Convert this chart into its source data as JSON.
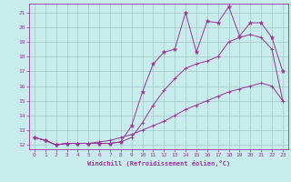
{
  "xlabel": "Windchill (Refroidissement éolien,°C)",
  "background_color": "#c8ecec",
  "grid_color": "#a0c8c8",
  "line_color": "#993399",
  "x_ticks": [
    0,
    1,
    2,
    3,
    4,
    5,
    6,
    7,
    8,
    9,
    10,
    11,
    12,
    13,
    14,
    15,
    16,
    17,
    18,
    19,
    20,
    21,
    22,
    23
  ],
  "y_ticks": [
    12,
    13,
    14,
    15,
    16,
    17,
    18,
    19,
    20,
    21
  ],
  "ylim": [
    11.7,
    21.6
  ],
  "xlim": [
    -0.5,
    23.5
  ],
  "line1_x": [
    0,
    1,
    2,
    3,
    4,
    5,
    6,
    7,
    8,
    9,
    10,
    11,
    12,
    13,
    14,
    15,
    16,
    17,
    18,
    19,
    20,
    21,
    22,
    23
  ],
  "line1_y": [
    12.5,
    12.3,
    12.0,
    12.1,
    12.1,
    12.1,
    12.1,
    12.1,
    12.2,
    13.3,
    15.6,
    17.5,
    18.3,
    18.5,
    21.0,
    18.3,
    20.4,
    20.3,
    21.4,
    19.4,
    20.3,
    20.3,
    19.3,
    17.0
  ],
  "line2_x": [
    0,
    1,
    2,
    3,
    4,
    5,
    6,
    7,
    8,
    9,
    10,
    11,
    12,
    13,
    14,
    15,
    16,
    17,
    18,
    19,
    20,
    21,
    22,
    23
  ],
  "line2_y": [
    12.5,
    12.3,
    12.0,
    12.1,
    12.1,
    12.1,
    12.1,
    12.1,
    12.2,
    12.5,
    13.5,
    14.7,
    15.7,
    16.5,
    17.2,
    17.5,
    17.7,
    18.0,
    19.0,
    19.3,
    19.5,
    19.3,
    18.5,
    15.0
  ],
  "line3_x": [
    0,
    1,
    2,
    3,
    4,
    5,
    6,
    7,
    8,
    9,
    10,
    11,
    12,
    13,
    14,
    15,
    16,
    17,
    18,
    19,
    20,
    21,
    22,
    23
  ],
  "line3_y": [
    12.5,
    12.3,
    12.0,
    12.1,
    12.1,
    12.1,
    12.2,
    12.3,
    12.5,
    12.7,
    13.0,
    13.3,
    13.6,
    14.0,
    14.4,
    14.7,
    15.0,
    15.3,
    15.6,
    15.8,
    16.0,
    16.2,
    16.0,
    15.0
  ]
}
